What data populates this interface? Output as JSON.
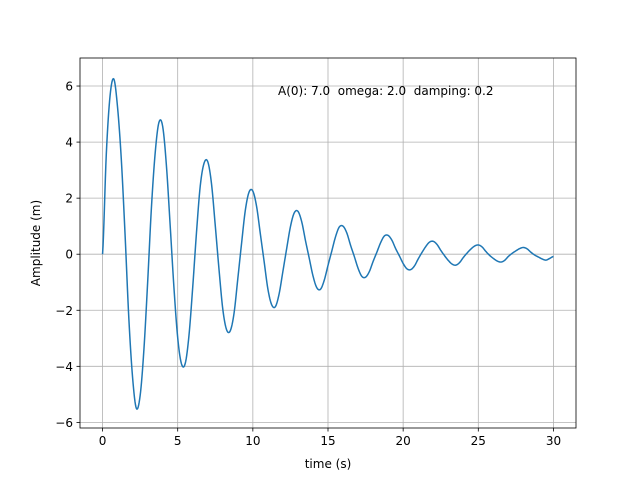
{
  "chart_data": {
    "type": "line",
    "title": "",
    "xlabel": "time (s)",
    "ylabel": "Amplitude (m)",
    "xlim": [
      -1.5,
      31.5
    ],
    "ylim": [
      -6.2,
      7.0
    ],
    "xticks": [
      0,
      5,
      10,
      15,
      20,
      25,
      30
    ],
    "yticks": [
      -6,
      -4,
      -2,
      0,
      2,
      4,
      6
    ],
    "xtick_labels": [
      "0",
      "5",
      "10",
      "15",
      "20",
      "25",
      "30"
    ],
    "ytick_labels": [
      "−6",
      "−4",
      "−2",
      "0",
      "2",
      "4",
      "6"
    ],
    "grid": true,
    "annotation": "A(0): 7.0  omega: 2.0  damping: 0.2",
    "series": [
      {
        "color": "#1f77b4",
        "x": [
          0,
          0.25,
          0.5,
          0.75,
          1.0,
          1.25,
          1.5,
          1.75,
          2.0,
          2.25,
          2.5,
          2.75,
          3.0,
          3.25,
          3.5,
          3.75,
          4.0,
          4.25,
          4.5,
          4.75,
          5.0,
          5.25,
          5.5,
          5.75,
          6.0,
          6.25,
          6.5,
          6.75,
          7.0,
          7.25,
          7.5,
          7.75,
          8.0,
          8.25,
          8.5,
          8.75,
          9.0,
          9.25,
          9.5,
          9.75,
          10.0,
          10.25,
          10.5,
          10.75,
          11.0,
          11.25,
          11.5,
          11.75,
          12.0,
          12.25,
          12.5,
          12.75,
          13.0,
          13.25,
          13.5,
          13.75,
          14.0,
          14.25,
          14.5,
          14.75,
          15.0,
          15.25,
          15.5,
          15.75,
          16.0,
          16.25,
          16.5,
          16.75,
          17.0,
          17.25,
          17.5,
          17.75,
          18.0,
          18.25,
          18.5,
          18.75,
          19.0,
          19.25,
          19.5,
          19.75,
          20.0,
          20.25,
          20.5,
          20.75,
          21.0,
          21.25,
          21.5,
          21.75,
          22.0,
          22.25,
          22.5,
          22.75,
          23.0,
          23.25,
          23.5,
          23.75,
          24.0,
          24.25,
          24.5,
          24.75,
          25.0,
          25.25,
          25.5,
          25.75,
          26.0,
          26.25,
          26.5,
          26.75,
          27.0,
          27.25,
          27.5,
          27.75,
          28.0,
          28.25,
          28.5,
          28.75,
          29.0,
          29.25,
          29.5,
          29.75,
          30.0
        ],
        "y": [
          0.0,
          3.57,
          5.65,
          6.25,
          5.23,
          3.37,
          0.68,
          -2.3,
          -4.41,
          -5.5,
          -5.05,
          -3.42,
          -1.01,
          1.64,
          3.6,
          4.7,
          4.56,
          3.16,
          1.02,
          -1.19,
          -2.98,
          -3.91,
          -3.9,
          -2.9,
          -1.17,
          0.77,
          2.43,
          3.24,
          3.3,
          2.51,
          1.02,
          -0.55,
          -1.96,
          -2.69,
          -2.73,
          -2.1,
          -0.87,
          0.39,
          1.57,
          2.22,
          2.25,
          1.7,
          0.72,
          -0.26,
          -1.24,
          -1.8,
          -1.87,
          -1.41,
          -0.61,
          0.2,
          0.98,
          1.47,
          1.53,
          1.16,
          0.49,
          -0.14,
          -0.77,
          -1.19,
          -1.25,
          -0.93,
          -0.4,
          0.11,
          0.62,
          0.97,
          1.0,
          0.76,
          0.32,
          -0.08,
          -0.5,
          -0.79,
          -0.82,
          -0.62,
          -0.26,
          0.07,
          0.41,
          0.65,
          0.67,
          0.5,
          0.2,
          -0.06,
          -0.33,
          -0.52,
          -0.55,
          -0.42,
          -0.17,
          0.06,
          0.27,
          0.43,
          0.46,
          0.35,
          0.14,
          -0.05,
          -0.22,
          -0.35,
          -0.39,
          -0.3,
          -0.12,
          0.04,
          0.18,
          0.29,
          0.33,
          0.26,
          0.1,
          -0.04,
          -0.15,
          -0.24,
          -0.28,
          -0.22,
          -0.08,
          0.03,
          0.12,
          0.2,
          0.24,
          0.19,
          0.07,
          -0.03,
          -0.1,
          -0.17,
          -0.21,
          -0.15,
          -0.08
        ]
      }
    ]
  }
}
